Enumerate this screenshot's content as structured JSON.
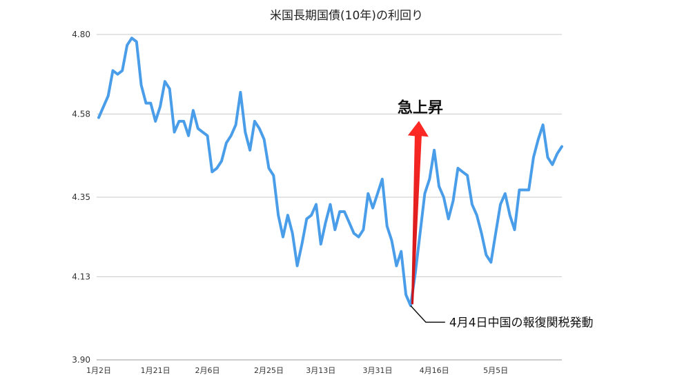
{
  "chart_data": {
    "type": "line",
    "title": "米国長期国債(10年)の利回り",
    "xlabel": "",
    "ylabel": "",
    "ylim": [
      3.9,
      4.8
    ],
    "yticks": [
      "4.80",
      "4.58",
      "4.35",
      "4.13",
      "3.90"
    ],
    "xtick_labels": [
      {
        "label": "1月2日",
        "index": 0
      },
      {
        "label": "1月21日",
        "index": 12
      },
      {
        "label": "2月6日",
        "index": 23
      },
      {
        "label": "2月25日",
        "index": 36
      },
      {
        "label": "3月13日",
        "index": 47
      },
      {
        "label": "3月31日",
        "index": 59
      },
      {
        "label": "4月16日",
        "index": 71
      },
      {
        "label": "5月5日",
        "index": 84
      }
    ],
    "grid": true,
    "line_color": "#4a9de8",
    "series": [
      {
        "name": "",
        "values": [
          4.57,
          4.6,
          4.63,
          4.7,
          4.69,
          4.7,
          4.77,
          4.79,
          4.78,
          4.66,
          4.61,
          4.61,
          4.56,
          4.6,
          4.67,
          4.65,
          4.53,
          4.56,
          4.56,
          4.52,
          4.59,
          4.54,
          4.53,
          4.52,
          4.42,
          4.43,
          4.45,
          4.5,
          4.52,
          4.55,
          4.64,
          4.53,
          4.48,
          4.56,
          4.54,
          4.51,
          4.43,
          4.41,
          4.3,
          4.24,
          4.3,
          4.25,
          4.16,
          4.22,
          4.29,
          4.3,
          4.33,
          4.22,
          4.28,
          4.33,
          4.26,
          4.31,
          4.31,
          4.28,
          4.25,
          4.24,
          4.26,
          4.36,
          4.32,
          4.36,
          4.4,
          4.27,
          4.23,
          4.16,
          4.2,
          4.08,
          4.05,
          4.14,
          4.25,
          4.36,
          4.4,
          4.48,
          4.38,
          4.35,
          4.29,
          4.34,
          4.43,
          4.42,
          4.41,
          4.33,
          4.3,
          4.25,
          4.19,
          4.17,
          4.25,
          4.33,
          4.36,
          4.3,
          4.26,
          4.37,
          4.37,
          4.37,
          4.46,
          4.51,
          4.55,
          4.46,
          4.44,
          4.47,
          4.49
        ]
      }
    ],
    "annotations": {
      "surge_label": "急上昇",
      "event_label": "4月4日中国の報復関税発動",
      "event_index": 66,
      "arrow_color": "#e8231f"
    }
  }
}
